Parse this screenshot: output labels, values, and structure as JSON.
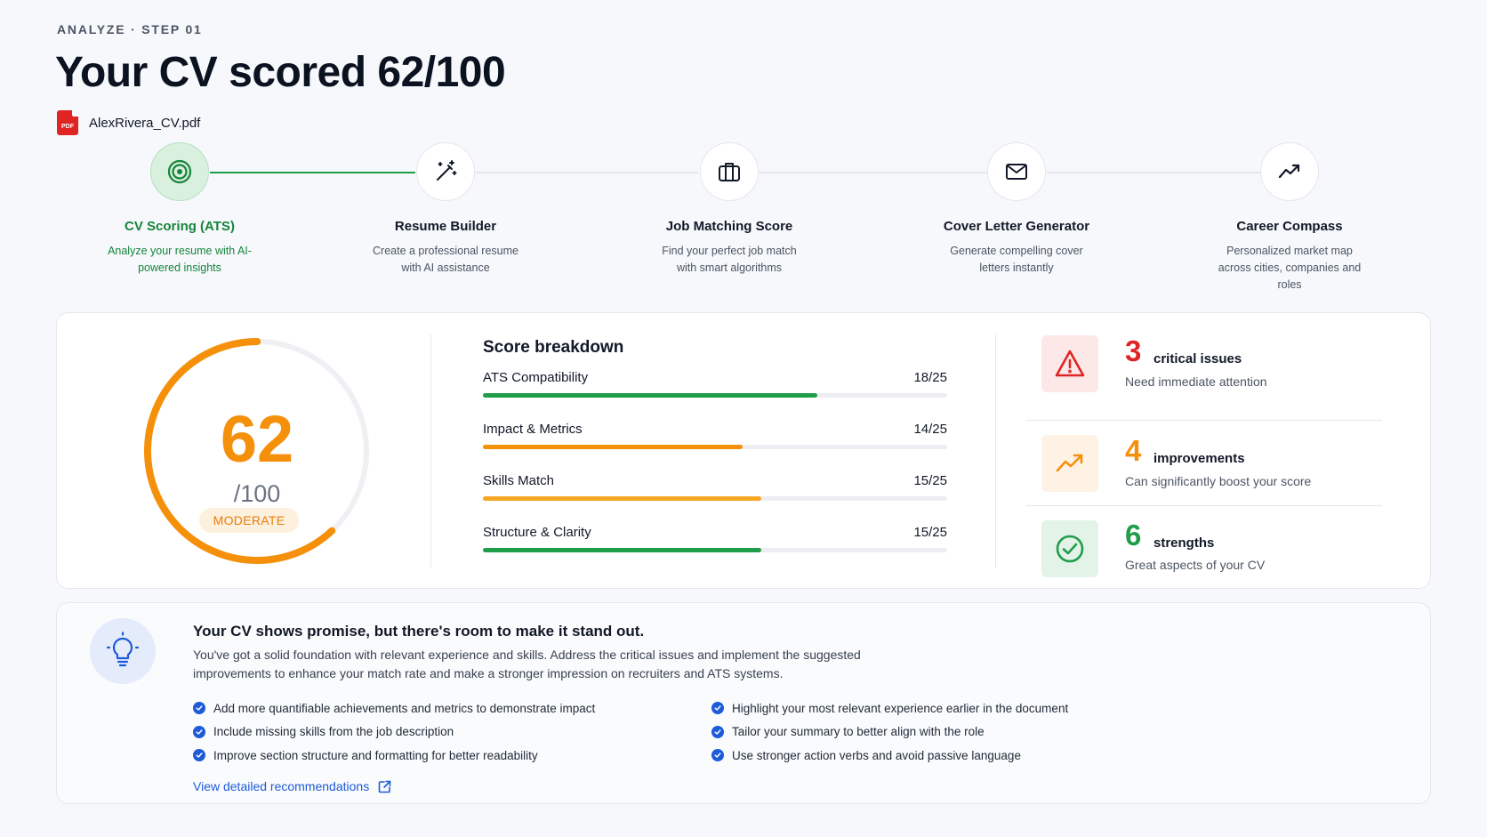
{
  "header": {
    "eyebrow": "ANALYZE · STEP 01",
    "title": "Your CV scored 62/100",
    "file_name": "AlexRivera_CV.pdf",
    "file_icon_text": "PDF"
  },
  "steps": [
    {
      "title": "CV Scoring (ATS)",
      "desc": "Analyze your resume with AI-powered insights",
      "icon": "target-icon",
      "active": true
    },
    {
      "title": "Resume Builder",
      "desc": "Create a professional resume with AI assistance",
      "icon": "magic-wand-icon",
      "active": false
    },
    {
      "title": "Job Matching Score",
      "desc": "Find your perfect job match with smart algorithms",
      "icon": "briefcase-icon",
      "active": false
    },
    {
      "title": "Cover Letter Generator",
      "desc": "Generate compelling cover letters instantly",
      "icon": "envelope-icon",
      "active": false
    },
    {
      "title": "Career Compass",
      "desc": "Personalized market map across cities, companies and roles",
      "icon": "trend-up-icon",
      "active": false
    }
  ],
  "score": {
    "value": "62",
    "max_label": "/100",
    "fraction": 0.62,
    "badge": "MODERATE",
    "color": "#f5900b"
  },
  "breakdown": {
    "title": "Score breakdown",
    "items": [
      {
        "label": "ATS Compatibility",
        "value": "18/25",
        "fraction": 0.72,
        "color": "#1f9d4a"
      },
      {
        "label": "Impact & Metrics",
        "value": "14/25",
        "fraction": 0.56,
        "color": "#f5900b"
      },
      {
        "label": "Skills Match",
        "value": "15/25",
        "fraction": 0.6,
        "color": "#f5a623"
      },
      {
        "label": "Structure & Clarity",
        "value": "15/25",
        "fraction": 0.6,
        "color": "#1f9d4a"
      }
    ]
  },
  "stats": [
    {
      "num": "3",
      "label": "critical issues",
      "sub": "Need immediate attention",
      "color": "#e02424",
      "bg": "#fde8e8",
      "icon": "warning-icon"
    },
    {
      "num": "4",
      "label": "improvements",
      "sub": "Can significantly boost your score",
      "color": "#f5900b",
      "bg": "#fdf2e3",
      "icon": "trend-up-icon"
    },
    {
      "num": "6",
      "label": "strengths",
      "sub": "Great aspects of your CV",
      "color": "#1f9d4a",
      "bg": "#e3f3e7",
      "icon": "check-circle-icon"
    }
  ],
  "advice": {
    "title": "Your CV shows promise, but there's room to make it stand out.",
    "body": "You've got a solid foundation with relevant experience and skills. Address the critical issues and implement the suggested improvements to enhance your match rate and make a stronger impression on recruiters and ATS systems.",
    "left_items": [
      "Add more quantifiable achievements and metrics to demonstrate impact",
      "Include missing skills from the job description",
      "Improve section structure and formatting for better readability"
    ],
    "right_items": [
      "Highlight your most relevant experience earlier in the document",
      "Tailor your summary to better align with the role",
      "Use stronger action verbs and avoid passive language"
    ],
    "link": "View detailed recommendations"
  }
}
